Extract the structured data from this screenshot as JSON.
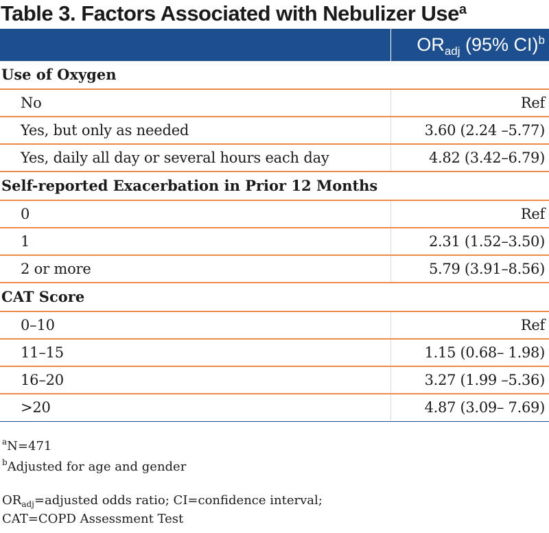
{
  "title": {
    "text": "Table 3. Factors Associated with Nebulizer Use",
    "sup": "a"
  },
  "column_header": {
    "main": "OR",
    "sub": "adj",
    "rest": " (95% CI)",
    "sup": "b"
  },
  "colors": {
    "header_bg": "#1d4f8f",
    "row_rule": "#f0884a"
  },
  "sections": [
    {
      "label": "Use of Oxygen",
      "rows": [
        {
          "label": "No",
          "value": "Ref"
        },
        {
          "label": "Yes, but only as needed",
          "value": "3.60 (2.24 –5.77)"
        },
        {
          "label": "Yes, daily all day or several hours each day",
          "value": "4.82 (3.42–6.79)"
        }
      ]
    },
    {
      "label": "Self-reported Exacerbation in Prior 12 Months",
      "rows": [
        {
          "label": "0",
          "value": "Ref"
        },
        {
          "label": "1",
          "value": "2.31 (1.52–3.50)"
        },
        {
          "label": "2 or more",
          "value": "5.79 (3.91–8.56)"
        }
      ]
    },
    {
      "label": "CAT Score",
      "rows": [
        {
          "label": "0–10",
          "value": "Ref"
        },
        {
          "label": "11–15",
          "value": "1.15 (0.68– 1.98)"
        },
        {
          "label": "16–20",
          "value": "3.27 (1.99 –5.36)"
        },
        {
          "label": ">20",
          "value": "4.87 (3.09– 7.69)"
        }
      ]
    }
  ],
  "footnotes": {
    "a": {
      "marker": "a",
      "text": "N=471"
    },
    "b": {
      "marker": "b",
      "text": "Adjusted for age and gender"
    },
    "abbrev_line1_main": "OR",
    "abbrev_line1_sub": "adj",
    "abbrev_line1_rest": "=adjusted odds ratio; CI=confidence interval;",
    "abbrev_line2": "CAT=COPD Assessment Test"
  }
}
